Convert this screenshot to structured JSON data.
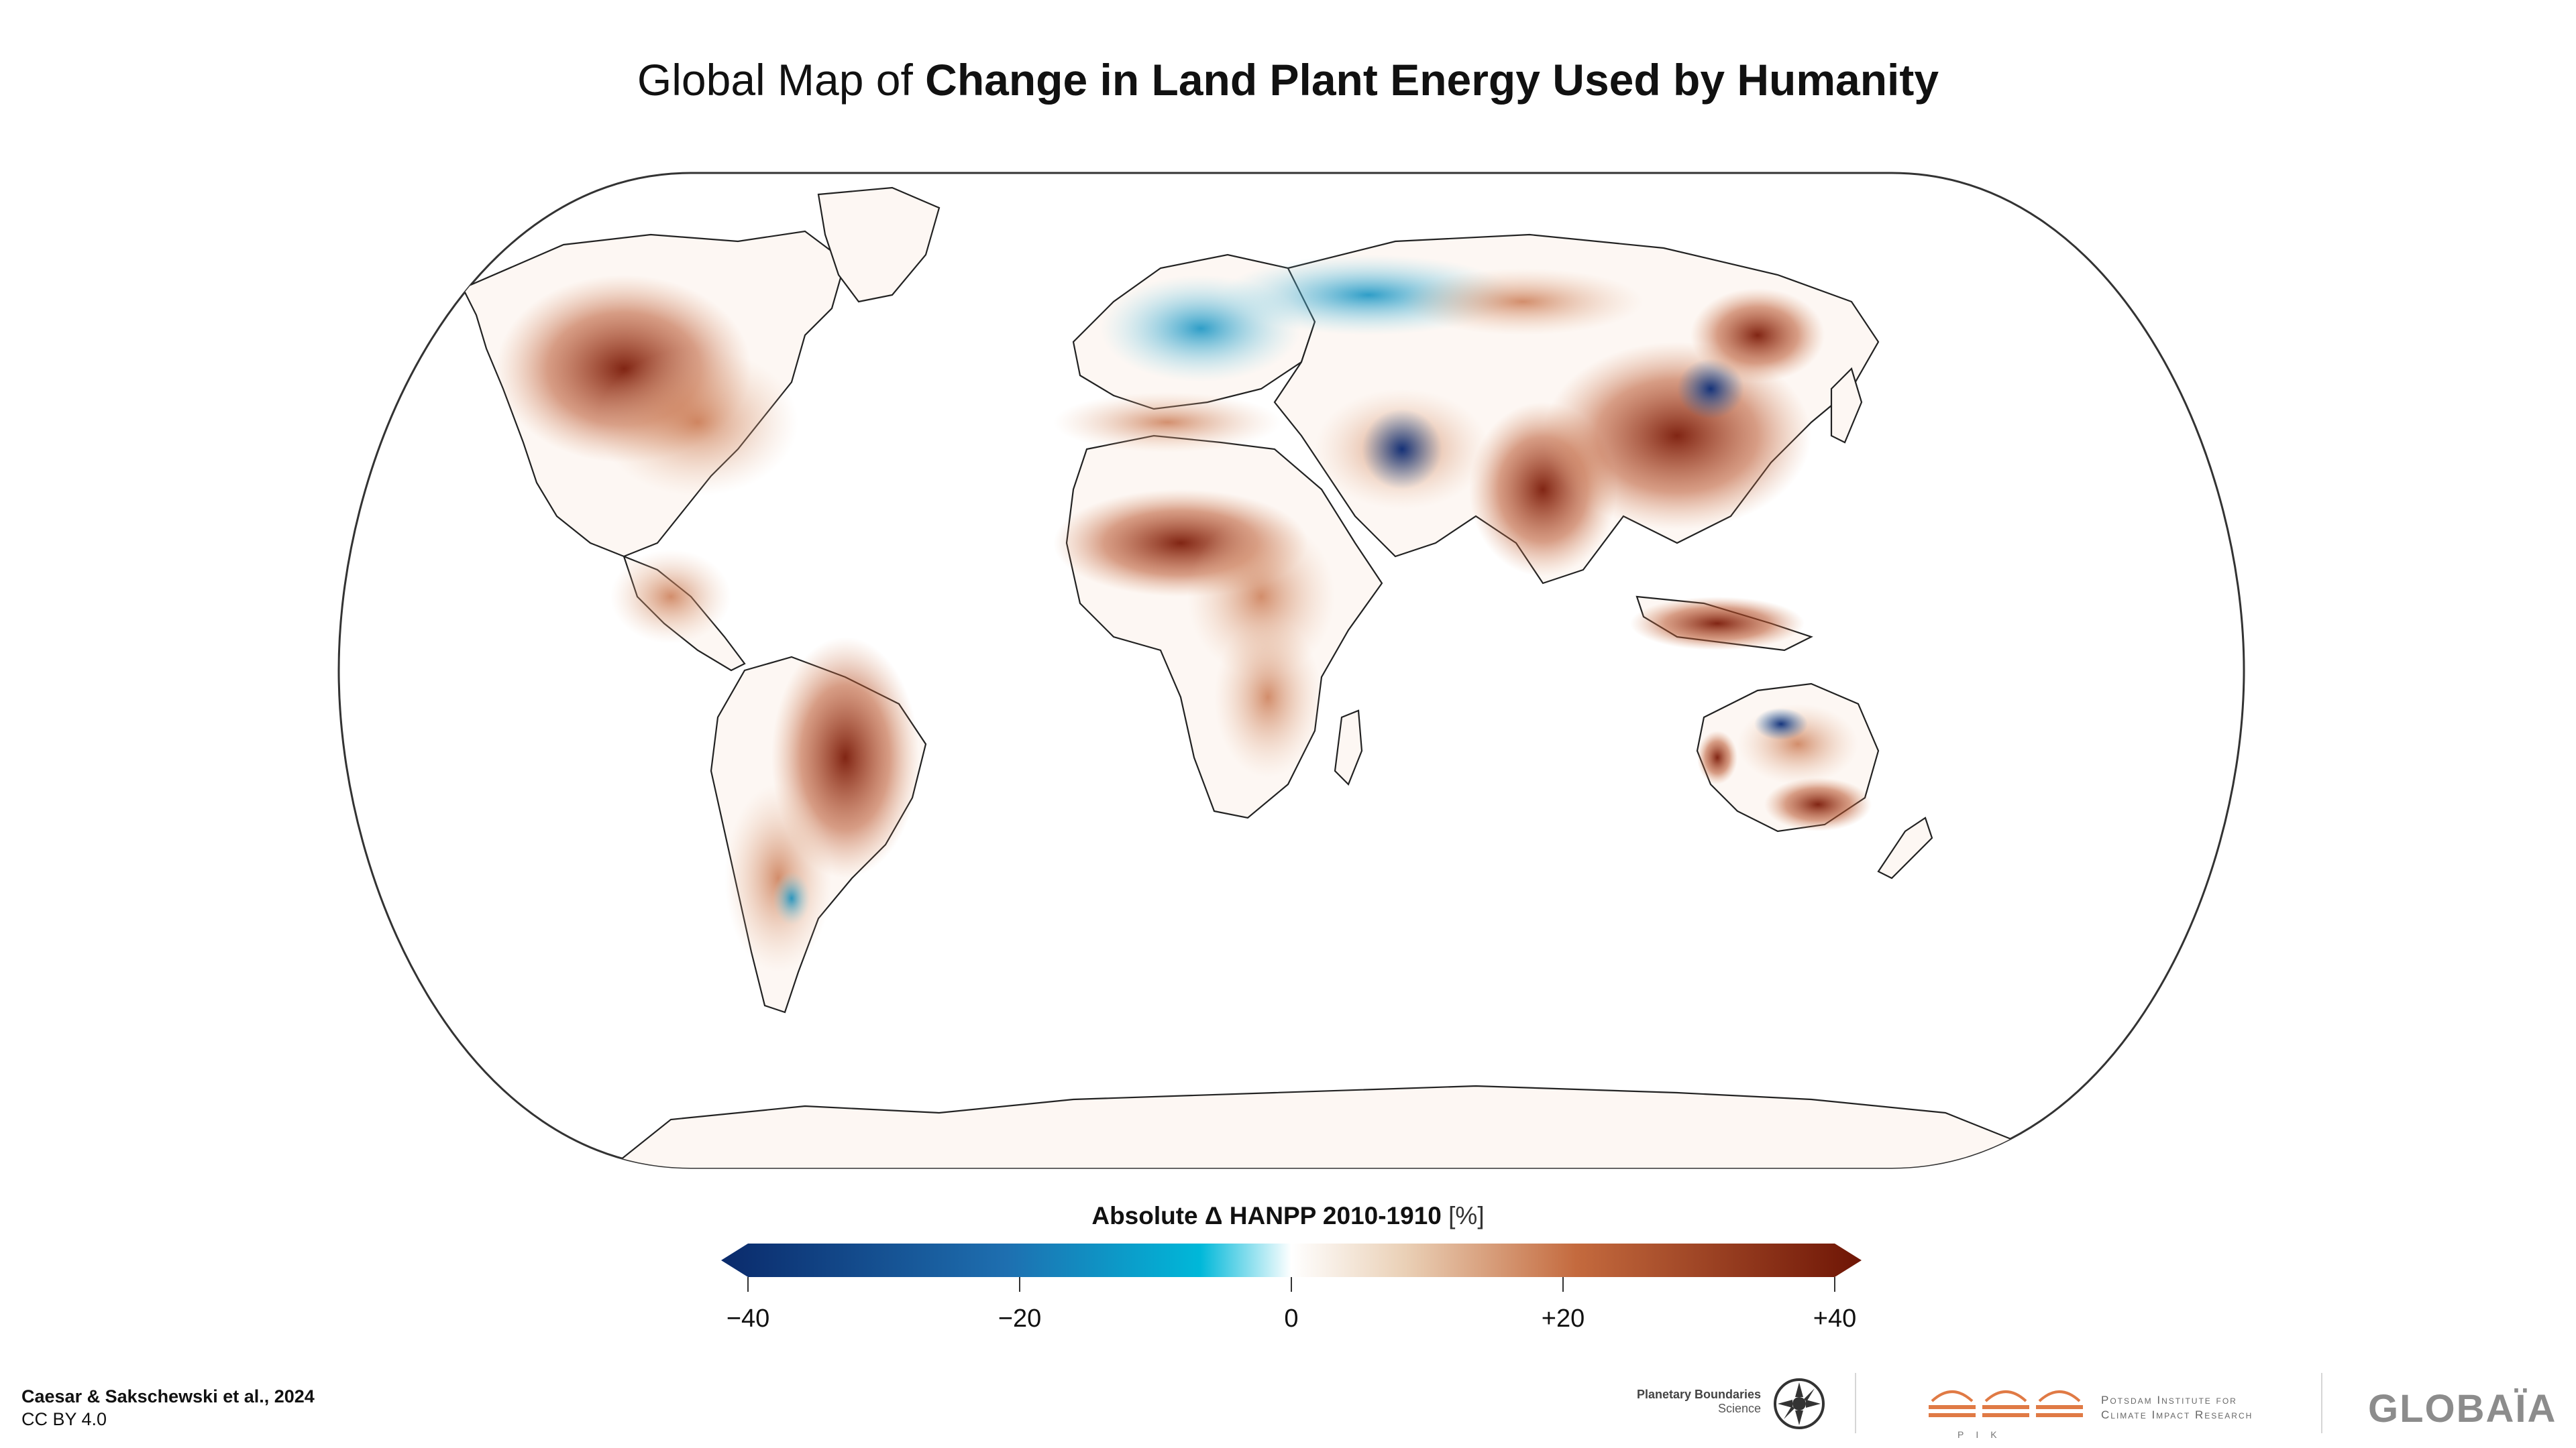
{
  "title": {
    "prefix": "Global Map of ",
    "emphasis": "Change in Land Plant Energy Used by Humanity"
  },
  "legend": {
    "title_bold": "Absolute Δ HANPP 2010-1910",
    "title_unit": "[%]",
    "ticks": [
      "−40",
      "−20",
      "0",
      "+20",
      "+40"
    ],
    "colors": {
      "min": "#0a2a6b",
      "mid_negative": "#00b8d9",
      "zero": "#ffffff",
      "mid_positive": "#d9a27e",
      "max": "#6e1505"
    }
  },
  "credit": {
    "authors": "Caesar & Sakschewski et al., 2024",
    "license": "CC BY 4.0"
  },
  "logos": {
    "pbs_name": "Planetary Boundaries",
    "pbs_sub": "Science",
    "pik_line1": "Potsdam Institute for",
    "pik_line2": "Climate Impact Research",
    "pik_letters": "PIK",
    "globaia": "GLOBAÏA"
  },
  "map": {
    "projection": "equal-earth",
    "land_color": "#fbf1ec",
    "outline_color": "#222222"
  }
}
